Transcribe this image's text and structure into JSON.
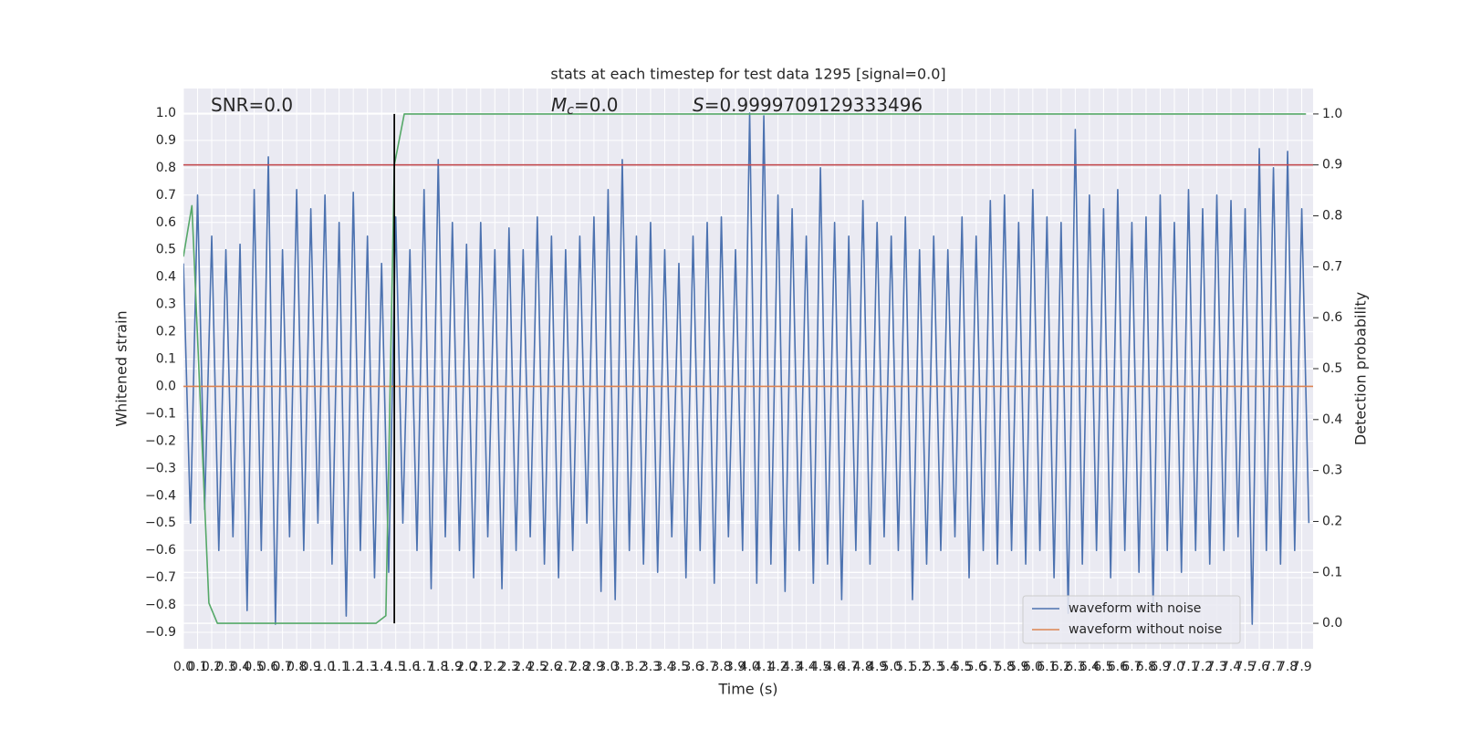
{
  "chart_data": {
    "type": "line",
    "title": "stats at each timestep for test data 1295 [signal=0.0]",
    "xlabel": "Time (s)",
    "ylabel": "Whitened strain",
    "y2label": "Detection probability",
    "grid": true,
    "legend": "lower right",
    "xlim": [
      0,
      7.98
    ],
    "ylim": [
      -0.96,
      1.09
    ],
    "y2lim": [
      -0.05,
      1.05
    ],
    "xticks": [
      {
        "value": 0,
        "label": "0.0"
      },
      0.1,
      0.2,
      0.3,
      0.4,
      0.5,
      0.6,
      0.7,
      0.8,
      0.9,
      {
        "value": 1,
        "label": "1.0"
      },
      1.1,
      1.2,
      1.3,
      1.4,
      1.5,
      1.6,
      1.7,
      1.8,
      1.9,
      {
        "value": 2,
        "label": "2.0"
      },
      2.1,
      2.2,
      2.3,
      2.4,
      2.5,
      2.6,
      2.7,
      2.8,
      2.9,
      {
        "value": 3,
        "label": "3.0"
      },
      3.1,
      3.2,
      3.3,
      3.4,
      3.5,
      3.6,
      3.7,
      3.8,
      3.9,
      {
        "value": 4,
        "label": "4.0"
      },
      4.1,
      4.2,
      4.3,
      4.4,
      4.5,
      4.6,
      4.7,
      4.8,
      4.9,
      {
        "value": 5,
        "label": "5.0"
      },
      5.1,
      5.2,
      5.3,
      5.4,
      5.5,
      5.6,
      5.7,
      5.8,
      5.9,
      {
        "value": 6,
        "label": "6.0"
      },
      6.1,
      6.2,
      6.3,
      6.4,
      6.5,
      6.6,
      6.7,
      6.8,
      6.9,
      {
        "value": 7,
        "label": "7.0"
      },
      7.1,
      7.2,
      7.3,
      7.4,
      7.5,
      7.6,
      7.7,
      7.8,
      7.9
    ],
    "yticks": [
      {
        "value": -0.9,
        "label": "−0.9"
      },
      {
        "value": -0.8,
        "label": "−0.8"
      },
      {
        "value": -0.7,
        "label": "−0.7"
      },
      {
        "value": -0.6,
        "label": "−0.6"
      },
      {
        "value": -0.5,
        "label": "−0.5"
      },
      {
        "value": -0.4,
        "label": "−0.4"
      },
      {
        "value": -0.3,
        "label": "−0.3"
      },
      {
        "value": -0.2,
        "label": "−0.2"
      },
      {
        "value": -0.1,
        "label": "−0.1"
      },
      {
        "value": 0,
        "label": "0.0"
      },
      0.1,
      0.2,
      0.3,
      0.4,
      0.5,
      0.6,
      0.7,
      0.8,
      0.9,
      {
        "value": 1,
        "label": "1.0"
      }
    ],
    "y2ticks": [
      {
        "value": 0,
        "label": "0.0"
      },
      0.1,
      0.2,
      0.3,
      0.4,
      0.5,
      0.6,
      0.7,
      0.8,
      0.9,
      {
        "value": 1,
        "label": "1.0"
      }
    ],
    "series": [
      {
        "name": "waveform with noise",
        "color": "#4c72b0",
        "x": [
          0,
          0.05,
          0.1,
          0.15,
          0.2,
          0.25,
          0.3,
          0.35,
          0.4,
          0.45,
          0.5,
          0.55,
          0.6,
          0.65,
          0.7,
          0.75,
          0.8,
          0.85,
          0.9,
          0.95,
          1,
          1.05,
          1.1,
          1.15,
          1.2,
          1.25,
          1.3,
          1.35,
          1.4,
          1.45,
          1.5,
          1.55,
          1.6,
          1.65,
          1.7,
          1.75,
          1.8,
          1.85,
          1.9,
          1.95,
          2,
          2.05,
          2.1,
          2.15,
          2.2,
          2.25,
          2.3,
          2.35,
          2.4,
          2.45,
          2.5,
          2.55,
          2.6,
          2.65,
          2.7,
          2.75,
          2.8,
          2.85,
          2.9,
          2.95,
          3,
          3.05,
          3.1,
          3.15,
          3.2,
          3.25,
          3.3,
          3.35,
          3.4,
          3.45,
          3.5,
          3.55,
          3.6,
          3.65,
          3.7,
          3.75,
          3.8,
          3.85,
          3.9,
          3.95,
          4,
          4.05,
          4.1,
          4.15,
          4.2,
          4.25,
          4.3,
          4.35,
          4.4,
          4.45,
          4.5,
          4.55,
          4.6,
          4.65,
          4.7,
          4.75,
          4.8,
          4.85,
          4.9,
          4.95,
          5,
          5.05,
          5.1,
          5.15,
          5.2,
          5.25,
          5.3,
          5.35,
          5.4,
          5.45,
          5.5,
          5.55,
          5.6,
          5.65,
          5.7,
          5.75,
          5.8,
          5.85,
          5.9,
          5.95,
          6,
          6.05,
          6.1,
          6.15,
          6.2,
          6.25,
          6.3,
          6.35,
          6.4,
          6.45,
          6.5,
          6.55,
          6.6,
          6.65,
          6.7,
          6.75,
          6.8,
          6.85,
          6.9,
          6.95,
          7,
          7.05,
          7.1,
          7.15,
          7.2,
          7.25,
          7.3,
          7.35,
          7.4,
          7.45,
          7.5,
          7.55,
          7.6,
          7.65,
          7.7,
          7.75,
          7.8,
          7.85,
          7.9,
          7.95
        ],
        "values": [
          0.45,
          -0.5,
          0.7,
          -0.45,
          0.55,
          -0.6,
          0.5,
          -0.55,
          0.52,
          -0.82,
          0.72,
          -0.6,
          0.84,
          -0.87,
          0.5,
          -0.55,
          0.72,
          -0.6,
          0.65,
          -0.5,
          0.7,
          -0.65,
          0.6,
          -0.84,
          0.71,
          -0.6,
          0.55,
          -0.7,
          0.45,
          -0.68,
          0.62,
          -0.5,
          0.5,
          -0.6,
          0.72,
          -0.74,
          0.83,
          -0.55,
          0.6,
          -0.6,
          0.52,
          -0.7,
          0.6,
          -0.55,
          0.5,
          -0.74,
          0.58,
          -0.6,
          0.5,
          -0.55,
          0.62,
          -0.65,
          0.55,
          -0.7,
          0.5,
          -0.6,
          0.55,
          -0.5,
          0.62,
          -0.75,
          0.72,
          -0.78,
          0.83,
          -0.6,
          0.55,
          -0.65,
          0.6,
          -0.68,
          0.5,
          -0.55,
          0.45,
          -0.7,
          0.55,
          -0.6,
          0.6,
          -0.72,
          0.62,
          -0.55,
          0.5,
          -0.6,
          1.0,
          -0.72,
          0.99,
          -0.65,
          0.7,
          -0.75,
          0.65,
          -0.6,
          0.55,
          -0.72,
          0.8,
          -0.65,
          0.6,
          -0.78,
          0.55,
          -0.6,
          0.68,
          -0.65,
          0.6,
          -0.55,
          0.55,
          -0.6,
          0.62,
          -0.78,
          0.5,
          -0.65,
          0.55,
          -0.6,
          0.5,
          -0.55,
          0.62,
          -0.7,
          0.55,
          -0.6,
          0.68,
          -0.65,
          0.7,
          -0.6,
          0.6,
          -0.65,
          0.72,
          -0.6,
          0.62,
          -0.7,
          0.6,
          -0.83,
          0.94,
          -0.65,
          0.7,
          -0.6,
          0.65,
          -0.7,
          0.72,
          -0.6,
          0.6,
          -0.68,
          0.62,
          -0.8,
          0.7,
          -0.6,
          0.6,
          -0.68,
          0.72,
          -0.6,
          0.65,
          -0.65,
          0.7,
          -0.6,
          0.68,
          -0.55,
          0.65,
          -0.87,
          0.87,
          -0.6,
          0.8,
          -0.65,
          0.86,
          -0.6,
          0.65,
          -0.5
        ]
      },
      {
        "name": "waveform without noise",
        "color": "#dd8452",
        "x": [
          0,
          7.98
        ],
        "values": [
          0,
          0
        ]
      },
      {
        "color": "#55a868",
        "axis": "y2",
        "x": [
          0,
          0.06,
          0.18,
          0.24,
          1.36,
          1.43,
          1.49,
          1.56,
          7.93
        ],
        "values": [
          0.72,
          0.82,
          0.04,
          0,
          0,
          0.015,
          0.9,
          1.0,
          1.0
        ]
      }
    ],
    "hlines": [
      {
        "y": 0.9,
        "axis": "y2",
        "color": "#c44e52"
      }
    ],
    "vlines": [
      {
        "x": 1.49,
        "ymin": 0,
        "ymax": 1,
        "axis": "y2",
        "color": "#000000"
      }
    ],
    "annotations": [
      {
        "text": "SNR=0.0"
      },
      {
        "symbol": "M",
        "subscript": "c",
        "text": "=0.0"
      },
      {
        "symbol": "S",
        "text": "=0.9999709129333496"
      }
    ]
  }
}
